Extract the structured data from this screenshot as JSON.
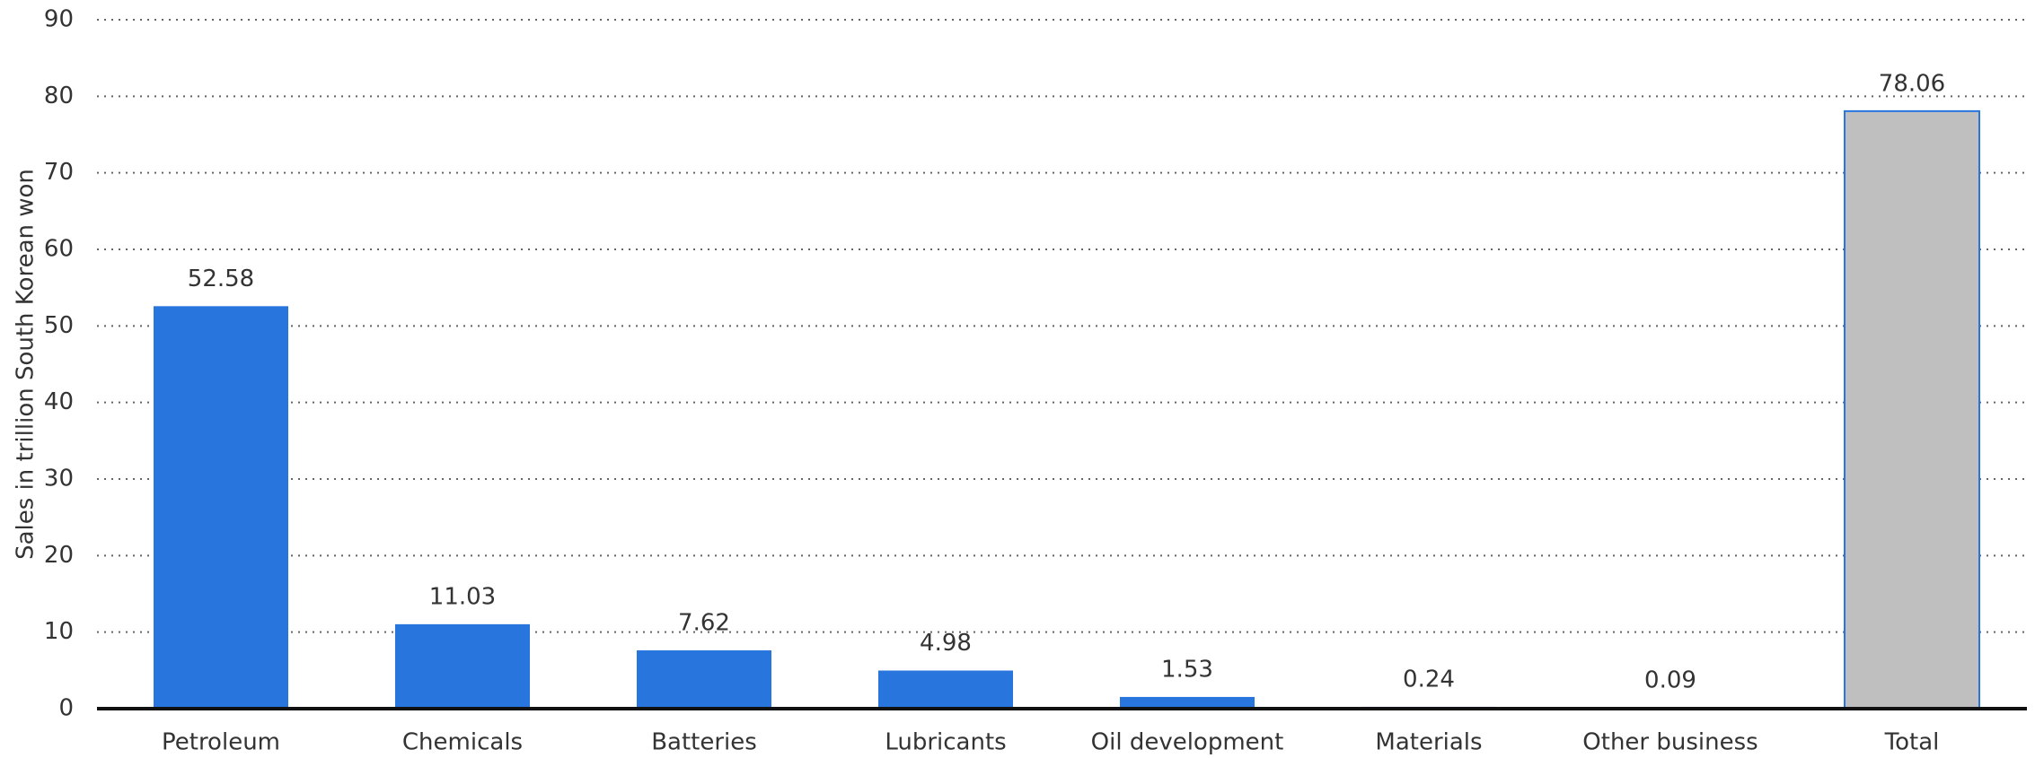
{
  "chart_data": {
    "type": "bar",
    "y_label": "Sales in trillion South Korean won",
    "categories": [
      "Petroleum",
      "Chemicals",
      "Batteries",
      "Lubricants",
      "Oil development",
      "Materials",
      "Other business",
      "Total"
    ],
    "values": [
      52.58,
      11.03,
      7.62,
      4.98,
      1.53,
      0.24,
      0.09,
      78.06
    ],
    "colors": [
      "#2876dd",
      "#2876dd",
      "#2876dd",
      "#2876dd",
      "#2876dd",
      "#2876dd",
      "#2876dd",
      "#bfbfbf"
    ],
    "ylim": [
      0,
      90
    ],
    "yticks": [
      0,
      10,
      20,
      30,
      40,
      50,
      60,
      70,
      80,
      90
    ],
    "grid": true
  }
}
